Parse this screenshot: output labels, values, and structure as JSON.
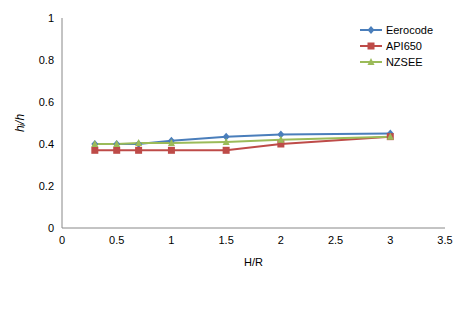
{
  "chart_data": {
    "type": "line",
    "x_label": "H/R",
    "y_label": "hᵢ/h",
    "x": [
      0.3,
      0.5,
      0.7,
      1,
      1.5,
      2,
      3
    ],
    "xlim": [
      0,
      3.5
    ],
    "xticks": [
      0,
      0.5,
      1,
      1.5,
      2,
      2.5,
      3,
      3.5
    ],
    "ylim": [
      0,
      1
    ],
    "yticks": [
      0,
      0.2,
      0.4,
      0.6,
      0.8,
      1
    ],
    "grid": false,
    "legend": "upper right",
    "series": [
      {
        "name": "Eerocode",
        "color": "#4a7ebb",
        "marker": "diamond",
        "values": [
          0.4,
          0.4,
          0.4,
          0.415,
          0.435,
          0.445,
          0.45
        ]
      },
      {
        "name": "API650",
        "color": "#be4b48",
        "marker": "square",
        "values": [
          0.37,
          0.37,
          0.37,
          0.37,
          0.37,
          0.4,
          0.435
        ]
      },
      {
        "name": "NZSEE",
        "color": "#9bbb59",
        "marker": "triangle",
        "values": [
          0.4,
          0.4,
          0.405,
          0.405,
          0.41,
          0.42,
          0.435
        ]
      }
    ]
  }
}
